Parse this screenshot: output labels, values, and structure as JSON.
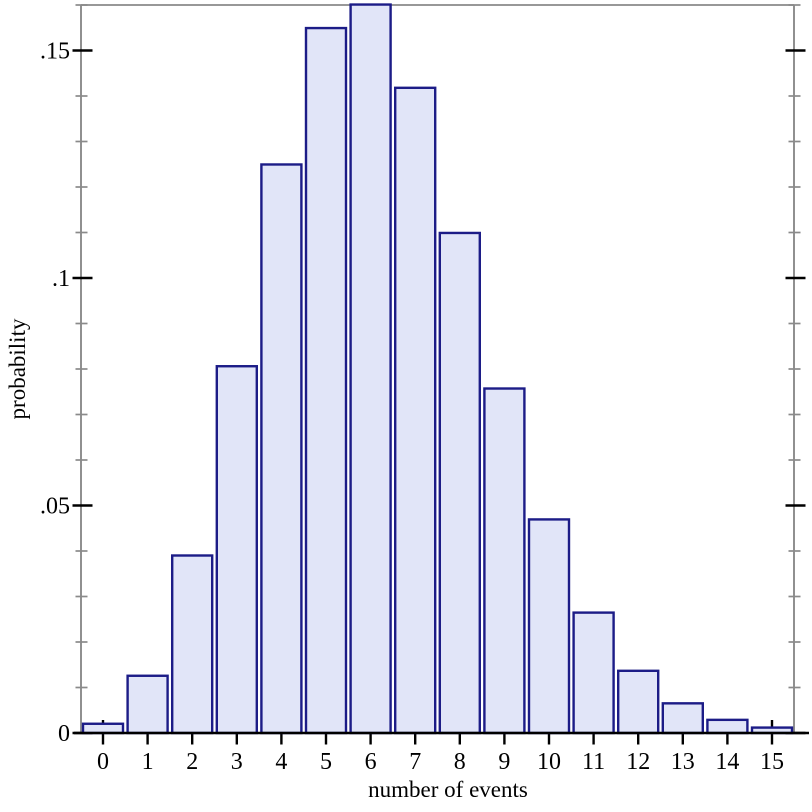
{
  "chart_data": {
    "type": "bar",
    "title": "",
    "xlabel": "number of events",
    "ylabel": "probability",
    "categories": [
      "0",
      "1",
      "2",
      "3",
      "4",
      "5",
      "6",
      "7",
      "8",
      "9",
      "10",
      "11",
      "12",
      "13",
      "14",
      "15"
    ],
    "values": [
      0.00203,
      0.01258,
      0.03901,
      0.08061,
      0.12495,
      0.15493,
      0.1601,
      0.1418,
      0.1099,
      0.07571,
      0.04694,
      0.02646,
      0.01367,
      0.00652,
      0.00289,
      0.00119
    ],
    "ylim": [
      0,
      0.16
    ],
    "y_major_ticks": [
      {
        "value": 0,
        "label": "0"
      },
      {
        "value": 0.05,
        "label": ".05"
      },
      {
        "value": 0.1,
        "label": ".1"
      },
      {
        "value": 0.15,
        "label": ".15"
      }
    ],
    "y_minor_tick_step": 0.01,
    "grid": false,
    "legend": "none",
    "colors": {
      "bar_fill": "#e1e5f8",
      "bar_stroke": "#1c1c87",
      "frame_axis": "#8a8a8a",
      "major_tick": "#000000",
      "x_axis_line": "#000000",
      "background": "#ffffff"
    }
  }
}
